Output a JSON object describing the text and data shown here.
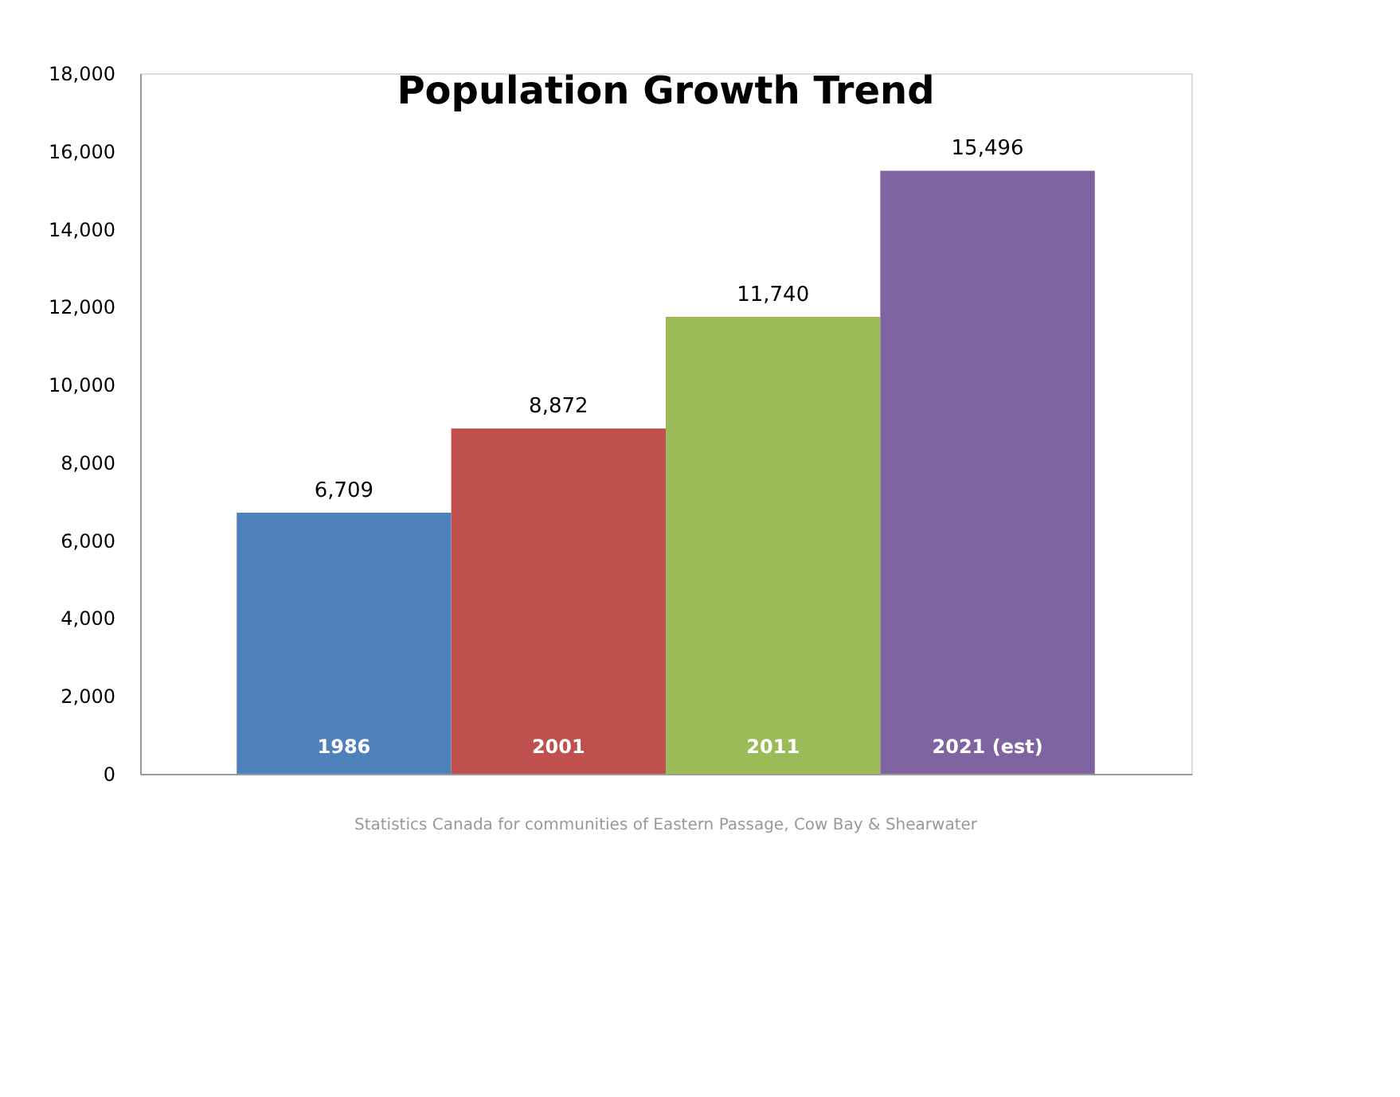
{
  "chart_data": {
    "type": "bar",
    "title": "Population Growth Trend",
    "categories": [
      "1986",
      "2001",
      "2011",
      "2021 (est)"
    ],
    "values": [
      6709,
      8872,
      11740,
      15496
    ],
    "colors": [
      "#4f81bd",
      "#c0504d",
      "#9bbb59",
      "#8064a2"
    ],
    "ylim": [
      0,
      18000
    ],
    "yticks": [
      0,
      {
        "value": 2000,
        "label": "2,000"
      },
      {
        "value": 4000,
        "label": "4,000"
      },
      {
        "value": 6000,
        "label": "6,000"
      },
      {
        "value": 8000,
        "label": "8,000"
      },
      {
        "value": 10000,
        "label": "10,000"
      },
      {
        "value": 12000,
        "label": "12,000"
      },
      {
        "value": 14000,
        "label": "14,000"
      },
      {
        "value": 16000,
        "label": "16,000"
      },
      {
        "value": 18000,
        "label": "18,000"
      }
    ],
    "value_labels": [
      "6,709",
      "8,872",
      "11,740",
      "15,496"
    ],
    "grid": false,
    "legend": false,
    "annotations": [
      "Statistics Canada for communities of Eastern Passage, Cow Bay & Shearwater"
    ]
  }
}
